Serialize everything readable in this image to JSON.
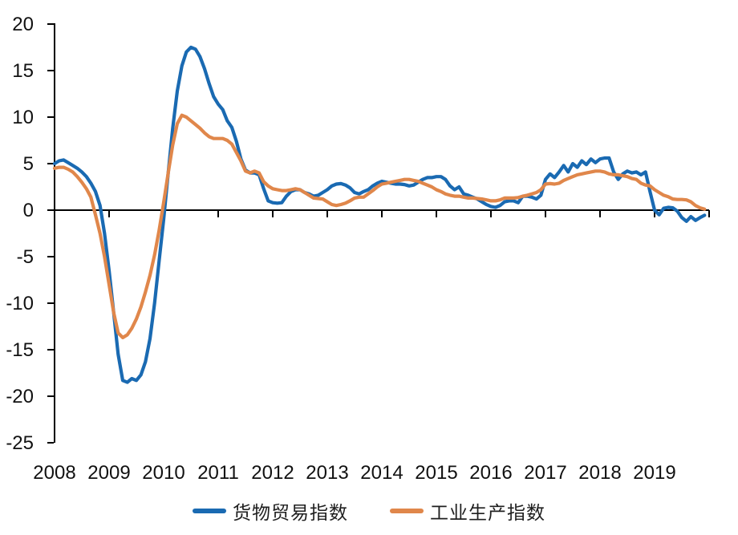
{
  "chart_data": {
    "type": "line",
    "title": "",
    "xlabel": "",
    "ylabel": "",
    "x_start_year": 2008,
    "x_months_per_point": 1,
    "x_tick_labels": [
      "2008",
      "2009",
      "2010",
      "2011",
      "2012",
      "2013",
      "2014",
      "2015",
      "2016",
      "2017",
      "2018",
      "2019"
    ],
    "y_ticks": [
      20,
      15,
      10,
      5,
      0,
      -5,
      -10,
      -15,
      -20,
      -25
    ],
    "ylim": [
      -25,
      20
    ],
    "grid": false,
    "legend_position": "bottom-center",
    "axis_color": "#000000",
    "series": [
      {
        "name": "货物贸易指数",
        "color": "#1a6ab2",
        "monthly_values": [
          5.0,
          5.3,
          5.4,
          5.1,
          4.8,
          4.5,
          4.1,
          3.6,
          2.9,
          2.0,
          0.5,
          -2.5,
          -6.5,
          -11.0,
          -15.5,
          -18.3,
          -18.5,
          -18.1,
          -18.3,
          -17.7,
          -16.3,
          -13.8,
          -10.0,
          -5.5,
          -1.0,
          4.0,
          8.8,
          12.8,
          15.5,
          17.0,
          17.5,
          17.3,
          16.5,
          15.2,
          13.6,
          12.2,
          11.4,
          10.8,
          9.6,
          8.9,
          7.4,
          5.5,
          4.3,
          4.0,
          4.0,
          3.8,
          2.3,
          1.0,
          0.8,
          0.75,
          0.8,
          1.5,
          2.0,
          2.2,
          2.2,
          1.9,
          1.75,
          1.5,
          1.6,
          1.9,
          2.2,
          2.6,
          2.8,
          2.85,
          2.7,
          2.4,
          1.9,
          1.75,
          2.0,
          2.2,
          2.6,
          2.9,
          3.1,
          3.0,
          2.9,
          2.8,
          2.8,
          2.75,
          2.6,
          2.7,
          3.0,
          3.3,
          3.5,
          3.5,
          3.6,
          3.6,
          3.3,
          2.6,
          2.2,
          2.5,
          1.75,
          1.6,
          1.4,
          1.2,
          0.9,
          0.6,
          0.4,
          0.3,
          0.5,
          0.9,
          1.0,
          1.0,
          0.8,
          1.5,
          1.5,
          1.4,
          1.2,
          1.6,
          3.3,
          3.9,
          3.5,
          4.1,
          4.8,
          4.1,
          5.0,
          4.6,
          5.3,
          4.9,
          5.5,
          5.1,
          5.5,
          5.6,
          5.6,
          4.1,
          3.3,
          3.9,
          4.2,
          4.0,
          4.1,
          3.8,
          4.1,
          2.0,
          0.0,
          -0.5,
          0.2,
          0.3,
          0.25,
          -0.1,
          -0.8,
          -1.2,
          -0.7,
          -1.1,
          -0.8,
          -0.55
        ]
      },
      {
        "name": "工业生产指数",
        "color": "#e0874b",
        "monthly_values": [
          4.5,
          4.6,
          4.6,
          4.4,
          4.1,
          3.6,
          3.0,
          2.3,
          1.4,
          -0.5,
          -2.5,
          -5.0,
          -8.0,
          -11.0,
          -13.2,
          -13.7,
          -13.4,
          -12.7,
          -11.7,
          -10.4,
          -8.8,
          -7.0,
          -4.8,
          -2.2,
          0.8,
          4.0,
          7.0,
          9.3,
          10.2,
          10.0,
          9.6,
          9.2,
          8.8,
          8.3,
          7.9,
          7.7,
          7.7,
          7.7,
          7.5,
          7.1,
          6.2,
          5.3,
          4.2,
          4.0,
          4.2,
          4.0,
          3.05,
          2.6,
          2.3,
          2.2,
          2.1,
          2.1,
          2.2,
          2.3,
          2.2,
          1.9,
          1.6,
          1.3,
          1.25,
          1.2,
          0.9,
          0.6,
          0.5,
          0.6,
          0.75,
          1.0,
          1.3,
          1.4,
          1.4,
          1.75,
          2.1,
          2.5,
          2.8,
          2.9,
          3.0,
          3.1,
          3.2,
          3.3,
          3.3,
          3.2,
          3.1,
          2.9,
          2.7,
          2.5,
          2.2,
          2.0,
          1.75,
          1.6,
          1.5,
          1.5,
          1.4,
          1.3,
          1.3,
          1.25,
          1.2,
          1.1,
          1.0,
          1.0,
          1.1,
          1.3,
          1.3,
          1.3,
          1.35,
          1.5,
          1.6,
          1.75,
          1.9,
          2.2,
          2.8,
          2.85,
          2.8,
          2.9,
          3.2,
          3.4,
          3.6,
          3.8,
          3.9,
          4.0,
          4.1,
          4.2,
          4.2,
          4.1,
          3.9,
          3.8,
          3.8,
          3.7,
          3.6,
          3.4,
          3.3,
          2.9,
          2.7,
          2.6,
          2.2,
          1.9,
          1.6,
          1.45,
          1.2,
          1.15,
          1.15,
          1.1,
          0.9,
          0.5,
          0.25,
          0.1
        ]
      }
    ]
  }
}
